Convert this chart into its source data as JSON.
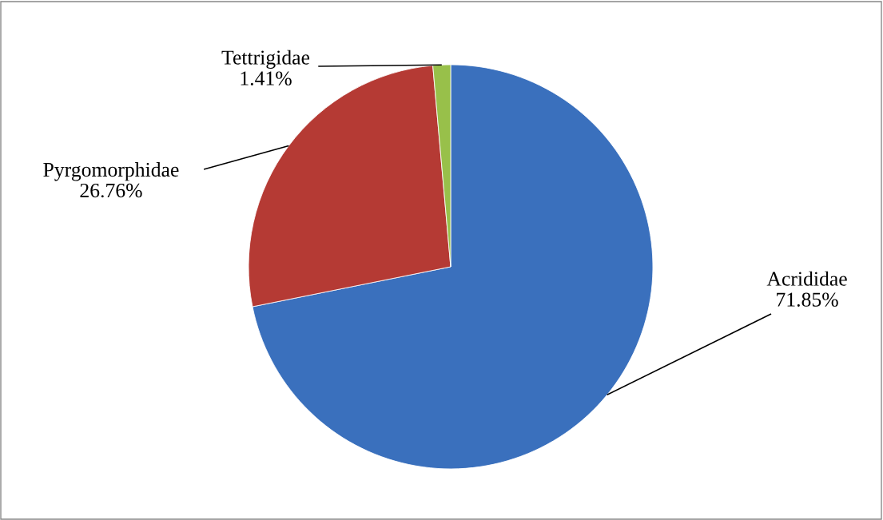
{
  "chart_data": {
    "type": "pie",
    "categories": [
      "Acrididae",
      "Pyrgomorphidae",
      "Tettrigidae"
    ],
    "values": [
      71.85,
      26.76,
      1.41
    ],
    "colors": [
      "#3a70bd",
      "#b53a34",
      "#98c04a"
    ],
    "value_labels": [
      "71.85%",
      "26.76%",
      "1.41%"
    ]
  }
}
